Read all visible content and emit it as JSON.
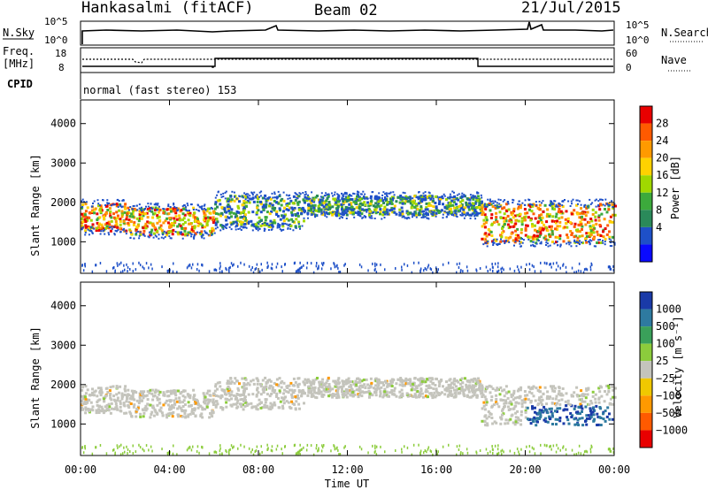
{
  "header": {
    "station": "Hankasalmi (fitACF)",
    "beam": "Beam 02",
    "date": "21/Jul/2015"
  },
  "side_labels": {
    "nsky": "N.Sky",
    "nsearch": "N.Search",
    "freq1": "Freq.",
    "freq2": "[MHz]",
    "cpid": "CPID",
    "nave": "Nave",
    "cpid_value": "normal (fast stereo) 153"
  },
  "noise_axis": {
    "left": [
      "10^5",
      "10^0"
    ],
    "right": [
      "10^5",
      "10^0"
    ]
  },
  "freq_axis": {
    "left": [
      "18",
      "8"
    ],
    "right": [
      "60",
      "0"
    ]
  },
  "power_scale": {
    "label": "Power [dB]",
    "ticks": [
      "28",
      "24",
      "20",
      "16",
      "12",
      "8",
      "4"
    ],
    "colors": [
      "#e80000",
      "#ff5a00",
      "#ff9a00",
      "#ffd200",
      "#a0d800",
      "#3caa3c",
      "#2a8a5a",
      "#1e50c8",
      "#0a0aff"
    ]
  },
  "velocity_scale": {
    "label": "Velocity [m s⁻¹]",
    "ticks": [
      "1000",
      "500",
      "100",
      "25",
      "−25",
      "−100",
      "−500",
      "−1000"
    ],
    "colors": [
      "#1a3aa8",
      "#2e7aa0",
      "#3aa05a",
      "#8ccc3c",
      "#c4c4bc",
      "#f0c800",
      "#ff9900",
      "#ff5a00",
      "#e80000"
    ]
  },
  "chart_data": [
    {
      "type": "heatmap",
      "title": "Power",
      "xlabel": "Time UT",
      "ylabel": "Slant Range [km]",
      "x_ticks": [
        "00:00",
        "04:00",
        "08:00",
        "12:00",
        "16:00",
        "20:00",
        "00:00"
      ],
      "y_ticks": [
        "1000",
        "2000",
        "3000",
        "4000"
      ],
      "xlim": [
        0,
        24
      ],
      "ylim": [
        200,
        4600
      ],
      "bands": [
        {
          "t0": 0,
          "t1": 2,
          "r0": 1300,
          "r1": 2000,
          "level": "high"
        },
        {
          "t0": 2,
          "t1": 6,
          "r0": 1200,
          "r1": 1900,
          "level": "high"
        },
        {
          "t0": 6,
          "t1": 10,
          "r0": 1400,
          "r1": 2200,
          "level": "mid"
        },
        {
          "t0": 10,
          "t1": 18,
          "r0": 1700,
          "r1": 2200,
          "level": "mid"
        },
        {
          "t0": 18,
          "t1": 24,
          "r0": 1000,
          "r1": 2000,
          "level": "high"
        }
      ]
    },
    {
      "type": "heatmap",
      "title": "Velocity",
      "xlabel": "Time UT",
      "ylabel": "Slant Range [km]",
      "x_ticks": [
        "00:00",
        "04:00",
        "08:00",
        "12:00",
        "16:00",
        "20:00",
        "00:00"
      ],
      "y_ticks": [
        "1000",
        "2000",
        "3000",
        "4000"
      ],
      "xlim": [
        0,
        24
      ],
      "ylim": [
        200,
        4600
      ]
    }
  ]
}
